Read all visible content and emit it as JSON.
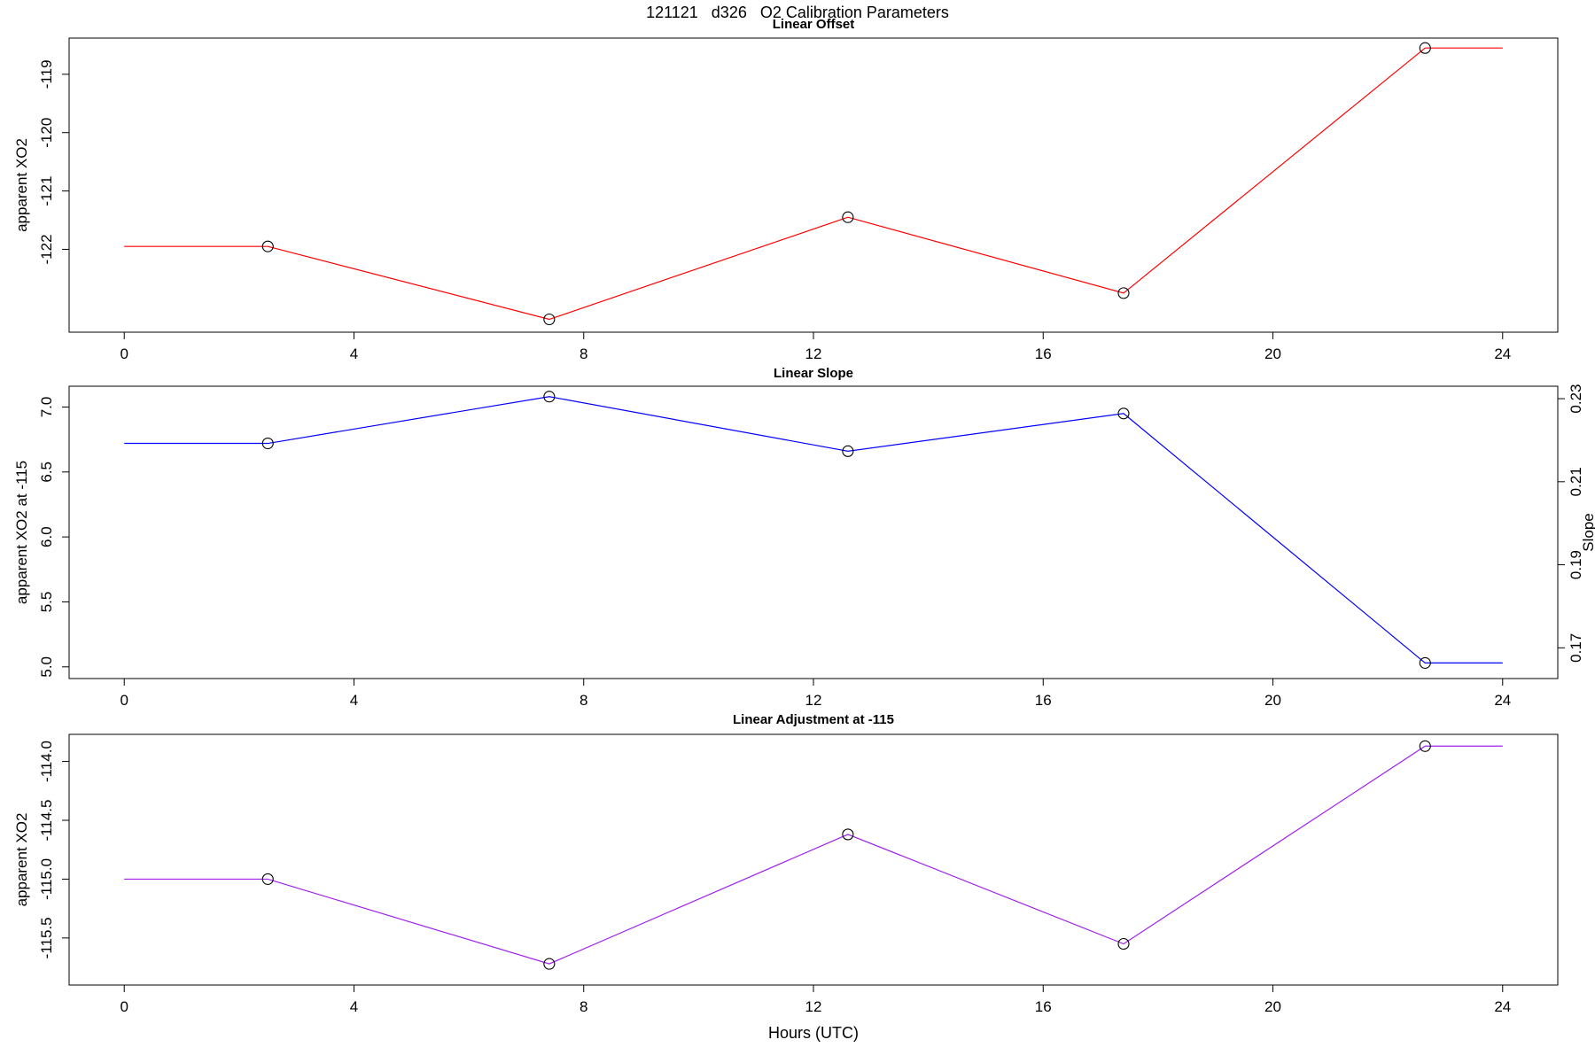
{
  "figure_title": "121121   d326   O2 Calibration Parameters",
  "xlabel": "Hours (UTC)",
  "x_axis": {
    "xlim": [
      -0.96,
      24.96
    ],
    "ticks": [
      0,
      4,
      8,
      12,
      16,
      20,
      24
    ],
    "tick_labels": [
      "0",
      "4",
      "8",
      "12",
      "16",
      "20",
      "24"
    ]
  },
  "chart_data": [
    {
      "type": "line",
      "title": "Linear Offset",
      "ylabel": "apparent XO2",
      "color": "#FF0000",
      "marker": "open-circle",
      "grid": false,
      "x": [
        0,
        2.5,
        7.4,
        12.6,
        17.4,
        22.65,
        24
      ],
      "y": [
        -121.95,
        -121.95,
        -123.2,
        -121.45,
        -122.75,
        -118.55,
        -118.55
      ],
      "has_marker": [
        false,
        true,
        true,
        true,
        true,
        true,
        false
      ],
      "ylim": [
        -123.42,
        -118.38
      ],
      "yticks": [
        -122,
        -121,
        -120,
        -119
      ],
      "ytick_labels": [
        "-122",
        "-121",
        "-120",
        "-119"
      ]
    },
    {
      "type": "line",
      "title": "Linear Slope",
      "ylabel": "apparent XO2 at -115",
      "color": "#0000FF",
      "marker": "open-circle",
      "grid": false,
      "x": [
        0,
        2.5,
        7.4,
        12.6,
        17.4,
        22.65,
        24
      ],
      "y": [
        6.72,
        6.72,
        7.08,
        6.66,
        6.95,
        5.03,
        5.03
      ],
      "has_marker": [
        false,
        true,
        true,
        true,
        true,
        true,
        false
      ],
      "ylim": [
        4.91,
        7.16
      ],
      "yticks": [
        5.0,
        5.5,
        6.0,
        6.5,
        7.0
      ],
      "ytick_labels": [
        "5.0",
        "5.5",
        "6.0",
        "6.5",
        "7.0"
      ],
      "right_axis": {
        "label": "Slope",
        "ylim": [
          0.1626,
          0.233
        ],
        "ticks": [
          0.17,
          0.19,
          0.21,
          0.23
        ],
        "tick_labels": [
          "0.17",
          "0.19",
          "0.21",
          "0.23"
        ]
      }
    },
    {
      "type": "line",
      "title": "Linear Adjustment at -115",
      "ylabel": "apparent XO2",
      "color": "#A020F0",
      "marker": "open-circle",
      "grid": false,
      "x": [
        0,
        2.5,
        7.4,
        12.6,
        17.4,
        22.65,
        24
      ],
      "y": [
        -115.0,
        -115.0,
        -115.72,
        -114.62,
        -115.55,
        -113.87,
        -113.87
      ],
      "has_marker": [
        false,
        true,
        true,
        true,
        true,
        true,
        false
      ],
      "ylim": [
        -115.9,
        -113.77
      ],
      "yticks": [
        -115.5,
        -115.0,
        -114.5,
        -114.0
      ],
      "ytick_labels": [
        "-115.5",
        "-115.0",
        "-114.5",
        "-114.0"
      ]
    }
  ]
}
